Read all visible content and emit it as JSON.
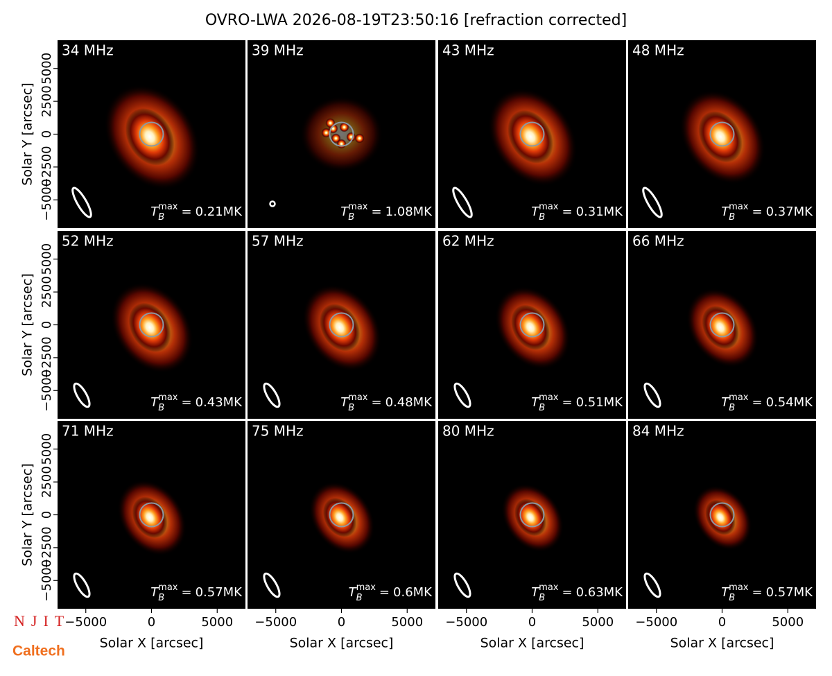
{
  "title": "OVRO-LWA 2026-08-19T23:50:16 [refraction corrected]",
  "tb_symbol": "T",
  "tb_sub": "B",
  "tb_sup": "max",
  "tb_eq": "=",
  "tb_unit": "MK",
  "logos": [
    "NJIT",
    "Caltech"
  ],
  "chart_data": [
    {
      "type": "image",
      "title": "34 MHz",
      "tb_max": 0.21,
      "xlim": [
        -7150,
        7150
      ],
      "ylim": [
        -7150,
        7150
      ],
      "ylabel": "Solar Y [arcsec]",
      "yticks": [
        {
          "value": -5000,
          "label": "−5000"
        },
        {
          "value": -2500,
          "label": "−2500"
        },
        0,
        2500,
        5000
      ]
    },
    {
      "type": "image",
      "title": "39 MHz",
      "tb_max": 1.08,
      "xlim": [
        -7150,
        7150
      ],
      "ylim": [
        -7150,
        7150
      ]
    },
    {
      "type": "image",
      "title": "43 MHz",
      "tb_max": 0.31,
      "xlim": [
        -7150,
        7150
      ],
      "ylim": [
        -7150,
        7150
      ]
    },
    {
      "type": "image",
      "title": "48 MHz",
      "tb_max": 0.37,
      "xlim": [
        -7150,
        7150
      ],
      "ylim": [
        -7150,
        7150
      ]
    },
    {
      "type": "image",
      "title": "52 MHz",
      "tb_max": 0.43,
      "xlim": [
        -7150,
        7150
      ],
      "ylim": [
        -7150,
        7150
      ],
      "ylabel": "Solar Y [arcsec]",
      "yticks": [
        {
          "value": -5000,
          "label": "−5000"
        },
        {
          "value": -2500,
          "label": "−2500"
        },
        0,
        2500,
        5000
      ]
    },
    {
      "type": "image",
      "title": "57 MHz",
      "tb_max": 0.48,
      "xlim": [
        -7150,
        7150
      ],
      "ylim": [
        -7150,
        7150
      ]
    },
    {
      "type": "image",
      "title": "62 MHz",
      "tb_max": 0.51,
      "xlim": [
        -7150,
        7150
      ],
      "ylim": [
        -7150,
        7150
      ]
    },
    {
      "type": "image",
      "title": "66 MHz",
      "tb_max": 0.54,
      "xlim": [
        -7150,
        7150
      ],
      "ylim": [
        -7150,
        7150
      ]
    },
    {
      "type": "image",
      "title": "71 MHz",
      "tb_max": 0.57,
      "xlim": [
        -7150,
        7150
      ],
      "ylim": [
        -7150,
        7150
      ],
      "ylabel": "Solar Y [arcsec]",
      "yticks": [
        {
          "value": -5000,
          "label": "−5000"
        },
        {
          "value": -2500,
          "label": "−2500"
        },
        0,
        2500,
        5000
      ],
      "xlabel": "Solar X [arcsec]",
      "xticks": [
        {
          "value": -5000,
          "label": "−5000"
        },
        0,
        5000
      ]
    },
    {
      "type": "image",
      "title": "75 MHz",
      "tb_max": 0.6,
      "xlim": [
        -7150,
        7150
      ],
      "ylim": [
        -7150,
        7150
      ],
      "xlabel": "Solar X [arcsec]",
      "xticks": [
        {
          "value": -5000,
          "label": "−5000"
        },
        0,
        5000
      ]
    },
    {
      "type": "image",
      "title": "80 MHz",
      "tb_max": 0.63,
      "xlim": [
        -7150,
        7150
      ],
      "ylim": [
        -7150,
        7150
      ],
      "xlabel": "Solar X [arcsec]",
      "xticks": [
        {
          "value": -5000,
          "label": "−5000"
        },
        0,
        5000
      ]
    },
    {
      "type": "image",
      "title": "84 MHz",
      "tb_max": 0.57,
      "xlim": [
        -7150,
        7150
      ],
      "ylim": [
        -7150,
        7150
      ],
      "xlabel": "Solar X [arcsec]",
      "xticks": [
        {
          "value": -5000,
          "label": "−5000"
        },
        0,
        5000
      ]
    }
  ]
}
